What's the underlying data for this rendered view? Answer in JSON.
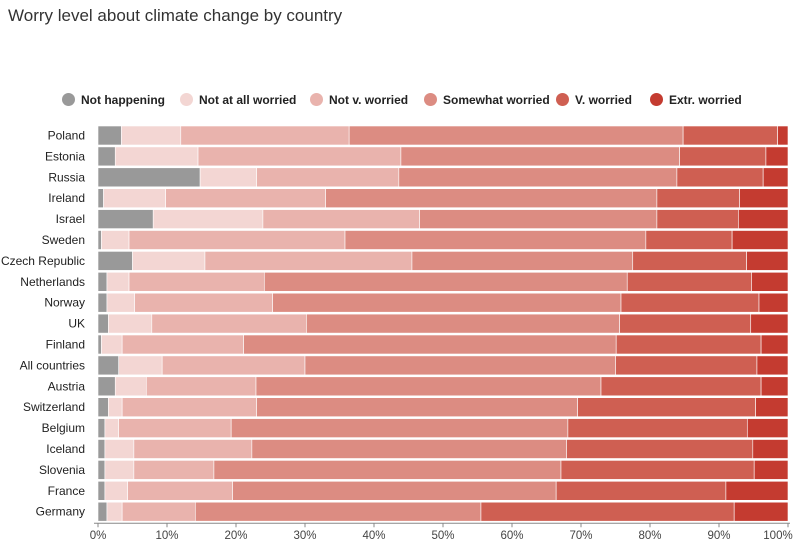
{
  "chart_data": {
    "type": "bar",
    "orientation": "horizontal",
    "stacked": "100%",
    "title": "Worry level about climate change by country",
    "xlabel": "",
    "ylabel": "",
    "xlim": [
      0,
      100
    ],
    "x_ticks": [
      "0%",
      "10%",
      "20%",
      "30%",
      "40%",
      "50%",
      "60%",
      "70%",
      "80%",
      "90%",
      "100%"
    ],
    "grid": false,
    "legend_position": "top",
    "categories": [
      "Poland",
      "Estonia",
      "Russia",
      "Ireland",
      "Israel",
      "Sweden",
      "Czech Republic",
      "Netherlands",
      "Norway",
      "UK",
      "Finland",
      "All countries",
      "Austria",
      "Switzerland",
      "Belgium",
      "Iceland",
      "Slovenia",
      "France",
      "Germany"
    ],
    "series": [
      {
        "name": "Not happening",
        "color": "#999999",
        "values": [
          3.4,
          2.5,
          14.8,
          0.8,
          8.0,
          0.5,
          5.0,
          1.3,
          1.3,
          1.5,
          0.5,
          3.0,
          2.5,
          1.5,
          1.0,
          1.0,
          1.0,
          1.0,
          1.3
        ]
      },
      {
        "name": "Not at all worried",
        "color": "#f3d6d3",
        "values": [
          8.6,
          12.0,
          8.2,
          9.0,
          15.9,
          4.0,
          10.5,
          3.2,
          4.0,
          6.3,
          3.0,
          6.3,
          4.5,
          2.0,
          2.0,
          4.2,
          4.2,
          3.3,
          2.2
        ]
      },
      {
        "name": "Not v. worried",
        "color": "#e9b3ad",
        "values": [
          24.4,
          29.4,
          20.6,
          23.2,
          22.7,
          31.3,
          30.0,
          19.6,
          20.0,
          22.4,
          17.6,
          20.7,
          15.9,
          19.5,
          16.3,
          17.1,
          11.6,
          15.2,
          10.6
        ]
      },
      {
        "name": "Somewhat worried",
        "color": "#dc8c82",
        "values": [
          48.4,
          40.4,
          40.3,
          48.0,
          34.4,
          43.6,
          32.0,
          52.6,
          50.5,
          45.4,
          54.0,
          45.0,
          50.0,
          46.5,
          48.8,
          45.6,
          50.3,
          46.9,
          41.4
        ]
      },
      {
        "name": "V. worried",
        "color": "#cf5f52",
        "values": [
          13.7,
          12.5,
          12.5,
          12.0,
          11.8,
          12.5,
          16.5,
          18.0,
          20.0,
          19.0,
          21.0,
          20.5,
          23.2,
          25.8,
          26.0,
          27.0,
          28.0,
          24.6,
          36.7
        ]
      },
      {
        "name": "Extr. worried",
        "color": "#c43b30",
        "values": [
          1.5,
          3.2,
          3.6,
          7.0,
          7.2,
          8.1,
          6.0,
          5.3,
          4.2,
          5.4,
          3.9,
          4.5,
          3.9,
          4.7,
          5.9,
          5.1,
          4.9,
          9.0,
          7.8
        ]
      }
    ]
  }
}
